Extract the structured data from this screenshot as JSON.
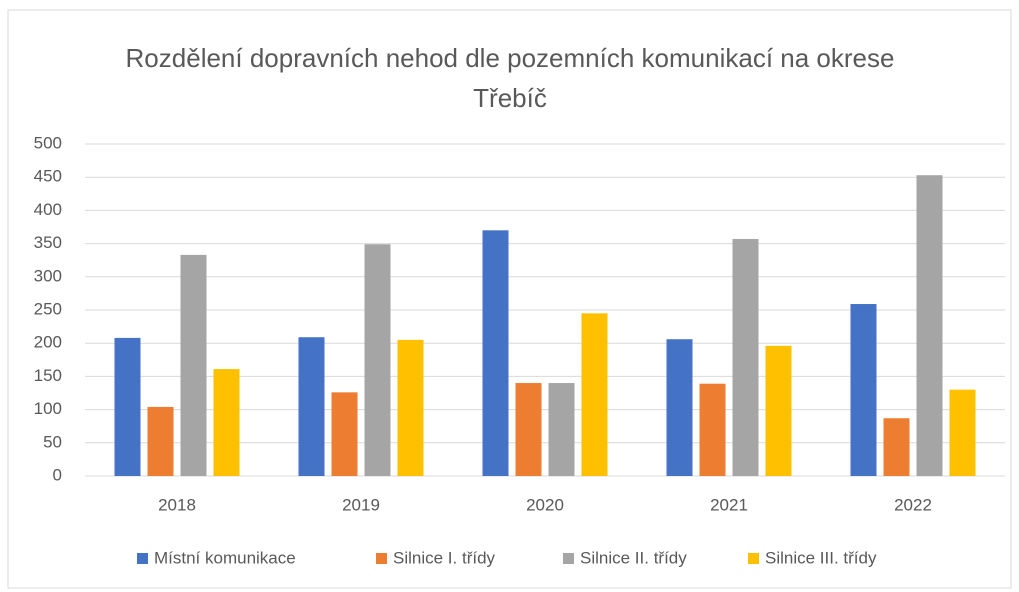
{
  "chart_data": {
    "type": "bar",
    "title": "Rozdělení dopravních nehod dle pozemních komunikací na okrese Třebíč",
    "categories": [
      "2018",
      "2019",
      "2020",
      "2021",
      "2022"
    ],
    "series": [
      {
        "name": "Místní komunikace",
        "color": "#4472c4",
        "values": [
          208,
          209,
          370,
          206,
          259
        ]
      },
      {
        "name": "Silnice I. třídy",
        "color": "#ed7d31",
        "values": [
          104,
          126,
          140,
          139,
          87
        ]
      },
      {
        "name": "Silnice II. třídy",
        "color": "#a5a5a5",
        "values": [
          333,
          349,
          140,
          357,
          453
        ]
      },
      {
        "name": "Silnice III. třídy",
        "color": "#ffc000",
        "values": [
          161,
          205,
          245,
          196,
          130
        ]
      }
    ],
    "ylim": [
      0,
      500
    ],
    "yticks": [
      0,
      50,
      100,
      150,
      200,
      250,
      300,
      350,
      400,
      450,
      500
    ],
    "grid": true,
    "legend": "bottom"
  }
}
